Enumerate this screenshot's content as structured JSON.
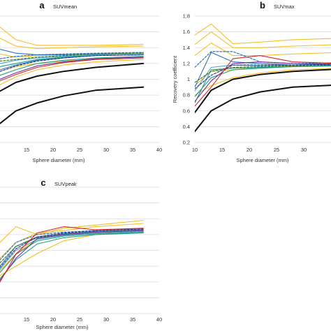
{
  "chart_data": [
    {
      "panel": "a",
      "title": "SUVmean",
      "type": "line",
      "xlabel": "Sphere diameter (mm)",
      "ylabel": "",
      "xlim": [
        10,
        40
      ],
      "ylim": [
        0.2,
        1.8
      ],
      "xticks": [
        15,
        20,
        25,
        30,
        35,
        40
      ],
      "yticks": [],
      "grid": true,
      "x": [
        10,
        13,
        17,
        22,
        28,
        37
      ],
      "series": [
        {
          "color": "#f4bf26",
          "width": 1.1,
          "dash": "",
          "values": [
            1.66,
            1.5,
            1.43,
            1.43,
            1.43,
            1.44
          ]
        },
        {
          "color": "#f4bf26",
          "width": 1.1,
          "dash": "",
          "values": [
            1.52,
            1.42,
            1.39,
            1.4,
            1.41,
            1.42
          ]
        },
        {
          "color": "#f4bf26",
          "width": 1.1,
          "dash": "",
          "values": [
            1.32,
            1.28,
            1.3,
            1.31,
            1.32,
            1.32
          ]
        },
        {
          "color": "#f4bf26",
          "width": 1.1,
          "dash": "",
          "values": [
            1.1,
            1.16,
            1.2,
            1.23,
            1.25,
            1.27
          ]
        },
        {
          "color": "#f4bf26",
          "width": 1.1,
          "dash": "",
          "values": [
            0.93,
            1.03,
            1.12,
            1.18,
            1.22,
            1.25
          ]
        },
        {
          "color": "#2e75b6",
          "width": 1.1,
          "dash": "",
          "values": [
            1.38,
            1.33,
            1.31,
            1.31,
            1.32,
            1.33
          ]
        },
        {
          "color": "#2e75b6",
          "width": 1.1,
          "dash": "",
          "values": [
            1.12,
            1.18,
            1.24,
            1.27,
            1.3,
            1.31
          ]
        },
        {
          "color": "#2e75b6",
          "width": 1.2,
          "dash": "3,2",
          "values": [
            1.26,
            1.29,
            1.31,
            1.32,
            1.33,
            1.34
          ]
        },
        {
          "color": "#4ea4c9",
          "width": 1.1,
          "dash": "",
          "values": [
            1.2,
            1.24,
            1.27,
            1.29,
            1.31,
            1.33
          ]
        },
        {
          "color": "#1f9e89",
          "width": 1.1,
          "dash": "",
          "values": [
            1.16,
            1.2,
            1.25,
            1.28,
            1.3,
            1.31
          ]
        },
        {
          "color": "#1f9e89",
          "width": 1.1,
          "dash": "",
          "values": [
            1.05,
            1.12,
            1.2,
            1.24,
            1.27,
            1.29
          ]
        },
        {
          "color": "#3a7d2c",
          "width": 1.2,
          "dash": "3,2",
          "values": [
            1.23,
            1.25,
            1.28,
            1.3,
            1.32,
            1.33
          ]
        },
        {
          "color": "#7030a0",
          "width": 1.1,
          "dash": "",
          "values": [
            1.0,
            1.08,
            1.17,
            1.22,
            1.26,
            1.28
          ]
        },
        {
          "color": "#2a3f8f",
          "width": 1.2,
          "dash": "3,2",
          "values": [
            1.1,
            1.17,
            1.23,
            1.27,
            1.3,
            1.31
          ]
        },
        {
          "color": "#d62728",
          "width": 1.1,
          "dash": "",
          "values": [
            0.98,
            1.06,
            1.15,
            1.21,
            1.25,
            1.27
          ]
        },
        {
          "color": "#111111",
          "width": 2.0,
          "dash": "",
          "values": [
            0.85,
            0.96,
            1.04,
            1.1,
            1.15,
            1.2
          ]
        },
        {
          "color": "#111111",
          "width": 2.0,
          "dash": "",
          "values": [
            0.44,
            0.6,
            0.7,
            0.79,
            0.86,
            0.9
          ]
        }
      ]
    },
    {
      "panel": "b",
      "title": "SUVmax",
      "type": "line",
      "xlabel": "Sphere diameter (mm)",
      "ylabel": "Recovery coefficient",
      "xlim": [
        10,
        40
      ],
      "ylim": [
        0.2,
        1.8
      ],
      "xticks": [
        10,
        15,
        20,
        25,
        30
      ],
      "yticks": [
        0.2,
        0.4,
        0.6,
        0.8,
        1,
        1.2,
        1.4,
        1.6,
        1.8
      ],
      "grid": true,
      "x": [
        10,
        13,
        17,
        22,
        28,
        37
      ],
      "series": [
        {
          "color": "#f4bf26",
          "width": 1.1,
          "dash": "",
          "values": [
            1.56,
            1.7,
            1.45,
            1.47,
            1.5,
            1.52
          ]
        },
        {
          "color": "#f4bf26",
          "width": 1.1,
          "dash": "",
          "values": [
            1.44,
            1.6,
            1.4,
            1.4,
            1.42,
            1.44
          ]
        },
        {
          "color": "#f4bf26",
          "width": 1.1,
          "dash": "",
          "values": [
            1.3,
            1.46,
            1.3,
            1.3,
            1.32,
            1.34
          ]
        },
        {
          "color": "#f4bf26",
          "width": 1.1,
          "dash": "",
          "values": [
            0.92,
            1.1,
            1.12,
            1.15,
            1.17,
            1.18
          ]
        },
        {
          "color": "#f4bf26",
          "width": 1.1,
          "dash": "",
          "values": [
            0.8,
            0.92,
            1.02,
            1.08,
            1.12,
            1.14
          ]
        },
        {
          "color": "#2e75b6",
          "width": 1.1,
          "dash": "",
          "values": [
            0.9,
            1.34,
            1.22,
            1.2,
            1.18,
            1.2
          ]
        },
        {
          "color": "#2e75b6",
          "width": 1.2,
          "dash": "3,2",
          "values": [
            1.15,
            1.35,
            1.35,
            1.22,
            1.2,
            1.21
          ]
        },
        {
          "color": "#4ea4c9",
          "width": 1.1,
          "dash": "",
          "values": [
            0.85,
            1.15,
            1.18,
            1.17,
            1.18,
            1.19
          ]
        },
        {
          "color": "#1f9e89",
          "width": 1.1,
          "dash": "",
          "values": [
            0.7,
            1.12,
            1.14,
            1.15,
            1.16,
            1.18
          ]
        },
        {
          "color": "#1f9e89",
          "width": 1.1,
          "dash": "",
          "values": [
            0.78,
            1.02,
            1.12,
            1.14,
            1.16,
            1.17
          ]
        },
        {
          "color": "#3a7d2c",
          "width": 1.2,
          "dash": "3,2",
          "values": [
            0.96,
            1.1,
            1.15,
            1.16,
            1.17,
            1.18
          ]
        },
        {
          "color": "#7030a0",
          "width": 1.1,
          "dash": "",
          "values": [
            0.72,
            0.98,
            1.2,
            1.22,
            1.2,
            1.19
          ]
        },
        {
          "color": "#2a3f8f",
          "width": 1.2,
          "dash": "3,2",
          "values": [
            0.88,
            1.05,
            1.18,
            1.18,
            1.18,
            1.19
          ]
        },
        {
          "color": "#d62728",
          "width": 1.1,
          "dash": "",
          "values": [
            0.66,
            0.9,
            1.26,
            1.3,
            1.22,
            1.2
          ]
        },
        {
          "color": "#111111",
          "width": 2.0,
          "dash": "",
          "values": [
            0.58,
            0.86,
            1.0,
            1.06,
            1.1,
            1.13
          ]
        },
        {
          "color": "#111111",
          "width": 2.0,
          "dash": "",
          "values": [
            0.34,
            0.6,
            0.75,
            0.84,
            0.9,
            0.93
          ]
        }
      ]
    },
    {
      "panel": "c",
      "title": "SUVpeak",
      "type": "line",
      "xlabel": "Sphere diameter (mm)",
      "ylabel": "",
      "xlim": [
        10,
        40
      ],
      "ylim": [
        0.2,
        1.8
      ],
      "xticks": [
        15,
        20,
        25,
        30,
        35,
        40
      ],
      "yticks": [],
      "grid": true,
      "x": [
        10,
        13,
        17,
        22,
        28,
        37
      ],
      "series": [
        {
          "color": "#f4bf26",
          "width": 1.1,
          "dash": "",
          "values": [
            1.1,
            1.3,
            1.2,
            1.28,
            1.32,
            1.38
          ]
        },
        {
          "color": "#f4bf26",
          "width": 1.1,
          "dash": "",
          "values": [
            0.9,
            1.1,
            1.22,
            1.25,
            1.3,
            1.34
          ]
        },
        {
          "color": "#f4bf26",
          "width": 1.1,
          "dash": "",
          "values": [
            0.74,
            0.96,
            1.14,
            1.2,
            1.25,
            1.28
          ]
        },
        {
          "color": "#f4bf26",
          "width": 1.1,
          "dash": "",
          "values": [
            0.68,
            0.8,
            0.96,
            1.12,
            1.2,
            1.23
          ]
        },
        {
          "color": "#2e75b6",
          "width": 1.1,
          "dash": "",
          "values": [
            0.8,
            1.05,
            1.17,
            1.21,
            1.24,
            1.26
          ]
        },
        {
          "color": "#2e75b6",
          "width": 1.2,
          "dash": "3,2",
          "values": [
            0.88,
            1.1,
            1.2,
            1.23,
            1.25,
            1.27
          ]
        },
        {
          "color": "#4ea4c9",
          "width": 1.1,
          "dash": "",
          "values": [
            0.76,
            1.0,
            1.14,
            1.19,
            1.22,
            1.24
          ]
        },
        {
          "color": "#1f9e89",
          "width": 1.1,
          "dash": "",
          "values": [
            0.72,
            0.95,
            1.12,
            1.18,
            1.21,
            1.23
          ]
        },
        {
          "color": "#1f9e89",
          "width": 1.1,
          "dash": "",
          "values": [
            0.64,
            0.88,
            1.08,
            1.16,
            1.2,
            1.22
          ]
        },
        {
          "color": "#3a7d2c",
          "width": 1.2,
          "dash": "3,2",
          "values": [
            0.84,
            1.05,
            1.16,
            1.2,
            1.23,
            1.25
          ]
        },
        {
          "color": "#7030a0",
          "width": 1.1,
          "dash": "",
          "values": [
            0.62,
            0.9,
            1.15,
            1.2,
            1.23,
            1.25
          ]
        },
        {
          "color": "#2a3f8f",
          "width": 1.2,
          "dash": "3,2",
          "values": [
            0.78,
            1.02,
            1.17,
            1.22,
            1.25,
            1.27
          ]
        },
        {
          "color": "#d62728",
          "width": 1.1,
          "dash": "",
          "values": [
            0.6,
            0.95,
            1.22,
            1.3,
            1.26,
            1.28
          ]
        }
      ]
    }
  ]
}
